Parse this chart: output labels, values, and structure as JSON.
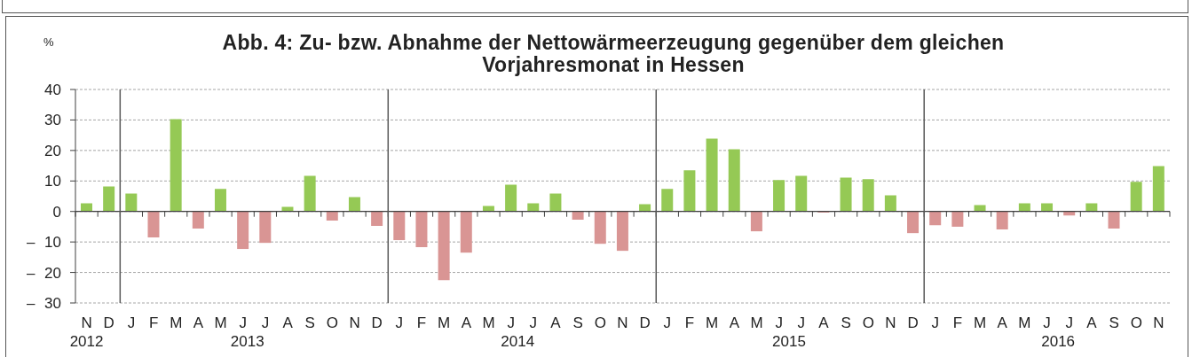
{
  "chart_data": {
    "type": "bar",
    "title": "Abb. 4: Zu- bzw. Abnahme der Nettowärmeerzeugung gegenüber dem gleichen Vorjahresmonat in Hessen",
    "ylabel": "%",
    "categories": [
      "N",
      "D",
      "J",
      "F",
      "M",
      "A",
      "M",
      "J",
      "J",
      "A",
      "S",
      "O",
      "N",
      "D",
      "J",
      "F",
      "M",
      "A",
      "M",
      "J",
      "J",
      "A",
      "S",
      "O",
      "N",
      "D",
      "J",
      "F",
      "M",
      "A",
      "M",
      "J",
      "J",
      "A",
      "S",
      "O",
      "N",
      "D",
      "J",
      "F",
      "M",
      "A",
      "M",
      "J",
      "J",
      "A",
      "S",
      "O",
      "N"
    ],
    "values": [
      2.7,
      8.2,
      5.9,
      -8.5,
      30.3,
      -5.6,
      7.4,
      -12.3,
      -10.3,
      1.5,
      11.7,
      -3.0,
      4.7,
      -4.7,
      -9.4,
      -11.7,
      -22.5,
      -13.5,
      1.8,
      8.8,
      2.7,
      5.9,
      -2.7,
      -10.6,
      -12.9,
      2.4,
      7.4,
      13.5,
      23.9,
      20.4,
      -6.5,
      10.3,
      11.7,
      -0.4,
      11.1,
      10.6,
      5.3,
      -7.1,
      -4.5,
      -5.0,
      2.1,
      -5.9,
      2.7,
      2.7,
      -1.3,
      2.7,
      -5.6,
      9.7,
      14.9
    ],
    "colors": [
      "#95c955",
      "#95c955",
      "#95c955",
      "#d99594",
      "#95c955",
      "#d99594",
      "#95c955",
      "#d99594",
      "#d99594",
      "#95c955",
      "#95c955",
      "#d99594",
      "#95c955",
      "#d99594",
      "#d99594",
      "#d99594",
      "#d99594",
      "#d99594",
      "#95c955",
      "#95c955",
      "#95c955",
      "#95c955",
      "#d99594",
      "#d99594",
      "#d99594",
      "#95c955",
      "#95c955",
      "#95c955",
      "#95c955",
      "#95c955",
      "#d99594",
      "#95c955",
      "#95c955",
      "#d99594",
      "#95c955",
      "#95c955",
      "#95c955",
      "#d99594",
      "#d99594",
      "#d99594",
      "#95c955",
      "#d99594",
      "#95c955",
      "#95c955",
      "#d99594",
      "#95c955",
      "#d99594",
      "#95c955",
      "#95c955"
    ],
    "ylim": [
      -30,
      40
    ],
    "yticks": [
      {
        "value": -30,
        "label": "– 30"
      },
      {
        "value": -20,
        "label": "– 20"
      },
      {
        "value": -10,
        "label": "– 10"
      },
      0,
      10,
      20,
      30,
      40
    ],
    "grid": "y",
    "annotations": [
      "2012",
      "2013",
      "2014",
      "2015",
      "2016"
    ]
  }
}
